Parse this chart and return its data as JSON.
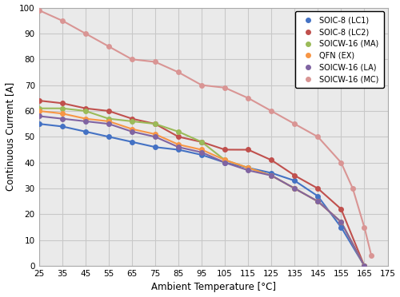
{
  "xlabel": "Ambient Temperature [°C]",
  "ylabel": "Continuous Current [A]",
  "xlim": [
    25,
    175
  ],
  "ylim": [
    0,
    100
  ],
  "xticks": [
    25,
    35,
    45,
    55,
    65,
    75,
    85,
    95,
    105,
    115,
    125,
    135,
    145,
    155,
    165,
    175
  ],
  "yticks": [
    0,
    10,
    20,
    30,
    40,
    50,
    60,
    70,
    80,
    90,
    100
  ],
  "series": [
    {
      "label": "SOIC-8 (LC1)",
      "color": "#4472C4",
      "marker": "o",
      "markersize": 4,
      "x": [
        25,
        35,
        45,
        55,
        65,
        75,
        85,
        95,
        105,
        115,
        125,
        135,
        145,
        155,
        165
      ],
      "y": [
        55,
        54,
        52,
        50,
        48,
        46,
        45,
        43,
        40,
        38,
        36,
        33,
        27,
        15,
        0
      ]
    },
    {
      "label": "SOIC-8 (LC2)",
      "color": "#C0504D",
      "marker": "o",
      "markersize": 4,
      "x": [
        25,
        35,
        45,
        55,
        65,
        75,
        85,
        95,
        105,
        115,
        125,
        135,
        145,
        155,
        165
      ],
      "y": [
        64,
        63,
        61,
        60,
        57,
        55,
        50,
        48,
        45,
        45,
        41,
        35,
        30,
        22,
        0
      ]
    },
    {
      "label": "SOICW-16 (MA)",
      "color": "#9BBB59",
      "marker": "o",
      "markersize": 4,
      "x": [
        25,
        35,
        45,
        55,
        65,
        75,
        85,
        95,
        105,
        115,
        125,
        135,
        145,
        155,
        165
      ],
      "y": [
        61,
        61,
        60,
        57,
        56,
        55,
        52,
        48,
        41,
        38,
        35,
        30,
        25,
        17,
        0
      ]
    },
    {
      "label": "QFN (EX)",
      "color": "#F79646",
      "marker": "o",
      "markersize": 4,
      "x": [
        25,
        35,
        45,
        55,
        65,
        75,
        85,
        95,
        105,
        115,
        125,
        135,
        145,
        155,
        165
      ],
      "y": [
        60,
        59,
        57,
        56,
        53,
        51,
        47,
        45,
        41,
        38,
        35,
        30,
        25,
        17,
        0
      ]
    },
    {
      "label": "SOICW-16 (LA)",
      "color": "#8064A2",
      "marker": "o",
      "markersize": 4,
      "x": [
        25,
        35,
        45,
        55,
        65,
        75,
        85,
        95,
        105,
        115,
        125,
        135,
        145,
        155,
        165
      ],
      "y": [
        58,
        57,
        56,
        55,
        52,
        50,
        46,
        44,
        40,
        37,
        35,
        30,
        25,
        17,
        0
      ]
    },
    {
      "label": "SOICW-16 (MC)",
      "color": "#D99594",
      "marker": "o",
      "markersize": 4,
      "x": [
        25,
        35,
        45,
        55,
        65,
        75,
        85,
        95,
        105,
        115,
        125,
        135,
        145,
        155,
        160,
        165,
        168
      ],
      "y": [
        99,
        95,
        90,
        85,
        80,
        79,
        75,
        70,
        69,
        65,
        60,
        55,
        50,
        40,
        30,
        15,
        4
      ]
    }
  ],
  "legend_loc": "upper right",
  "grid_color": "#c8c8c8",
  "plot_bg_color": "#eaeaea",
  "fig_bg_color": "#ffffff",
  "fig_width": 5.0,
  "fig_height": 3.72
}
